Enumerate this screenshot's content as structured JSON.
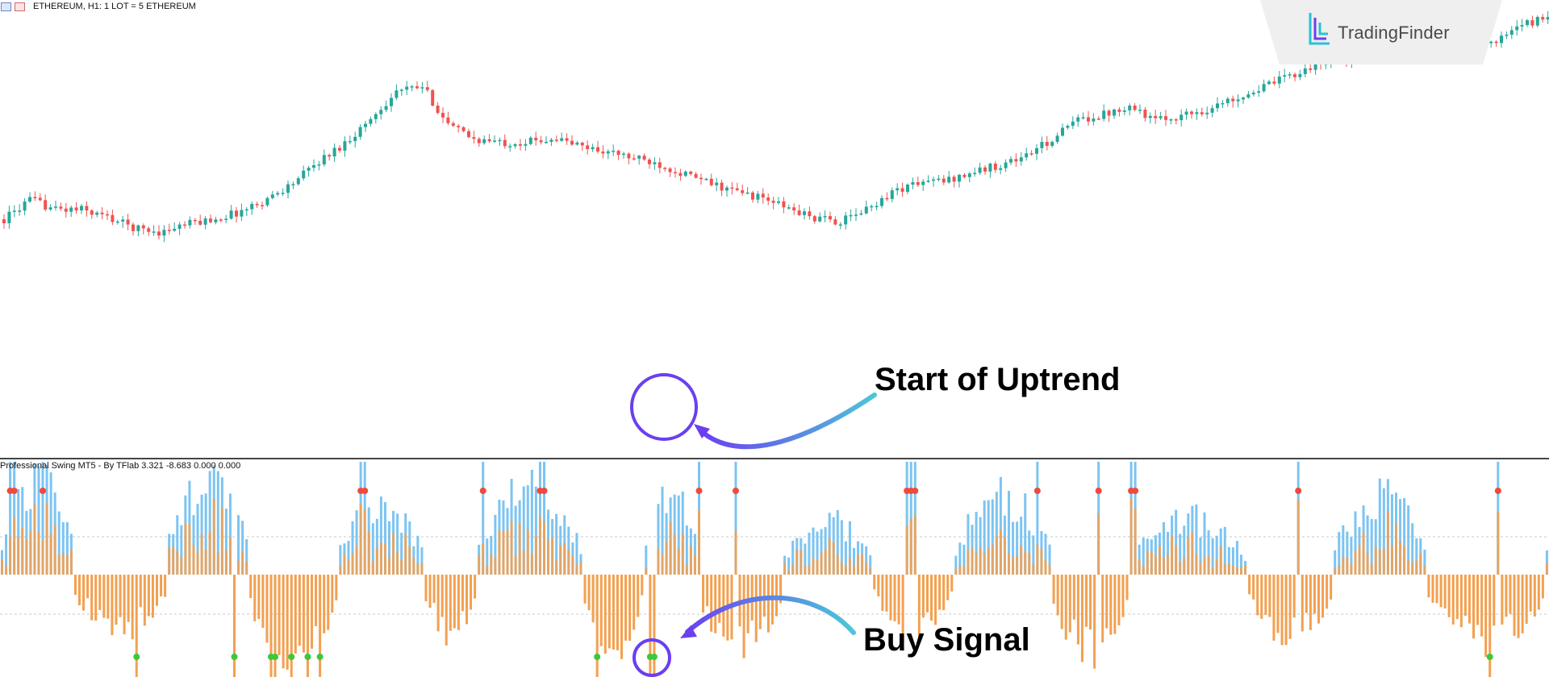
{
  "header": {
    "symbol_info": "ETHEREUM, H1:  1 LOT = 5 ETHEREUM"
  },
  "indicator": {
    "title": "Professional Swing MT5 - By TFlab 3.321 -8.683 0.000 0.000"
  },
  "logo": {
    "text": "TradingFinder",
    "mark_icon": "tradingfinder-logo-icon"
  },
  "annotations": {
    "uptrend_label": "Start of Uptrend",
    "buy_label": "Buy Signal"
  },
  "colors": {
    "bull_candle": "#26a69a",
    "bear_candle": "#ef5350",
    "positive_bar": "#7cc4f2",
    "negative_bar": "#f3a050",
    "sell_dot": "#ef4a3c",
    "buy_dot": "#3cc83c",
    "circle_stroke": "#6a3ff0",
    "arrow_cyan": "#4cc6d8",
    "arrow_purple": "#6a3ff0"
  },
  "chart_data": [
    {
      "type": "candlestick",
      "symbol": "ETHEREUM",
      "timeframe": "H1",
      "close_path": [
        296,
        320,
        308,
        308,
        298,
        285,
        280,
        290,
        296,
        305,
        320,
        340,
        367,
        390,
        420,
        455,
        460,
        412,
        395,
        391,
        392,
        397,
        387,
        380,
        372,
        365,
        352,
        340,
        330,
        322,
        309,
        297,
        293,
        309,
        331,
        342,
        344,
        354,
        363,
        374,
        394,
        419,
        426,
        438,
        418,
        425,
        432,
        446,
        458,
        472,
        486,
        494,
        498,
        512,
        508,
        524,
        522,
        516,
        536,
        548
      ]
    },
    {
      "type": "histogram",
      "title": "Professional Swing MT5 - By TFlab 3.321 -8.683 0.000 0.000",
      "sell_signal_bars": [
        2,
        3,
        10,
        88,
        89,
        118,
        132,
        133,
        171,
        180,
        222,
        223,
        224,
        254,
        269,
        277,
        278,
        318,
        367
      ],
      "buy_signal_bars": [
        33,
        57,
        66,
        67,
        71,
        75,
        78,
        146,
        159,
        160,
        365
      ]
    }
  ]
}
